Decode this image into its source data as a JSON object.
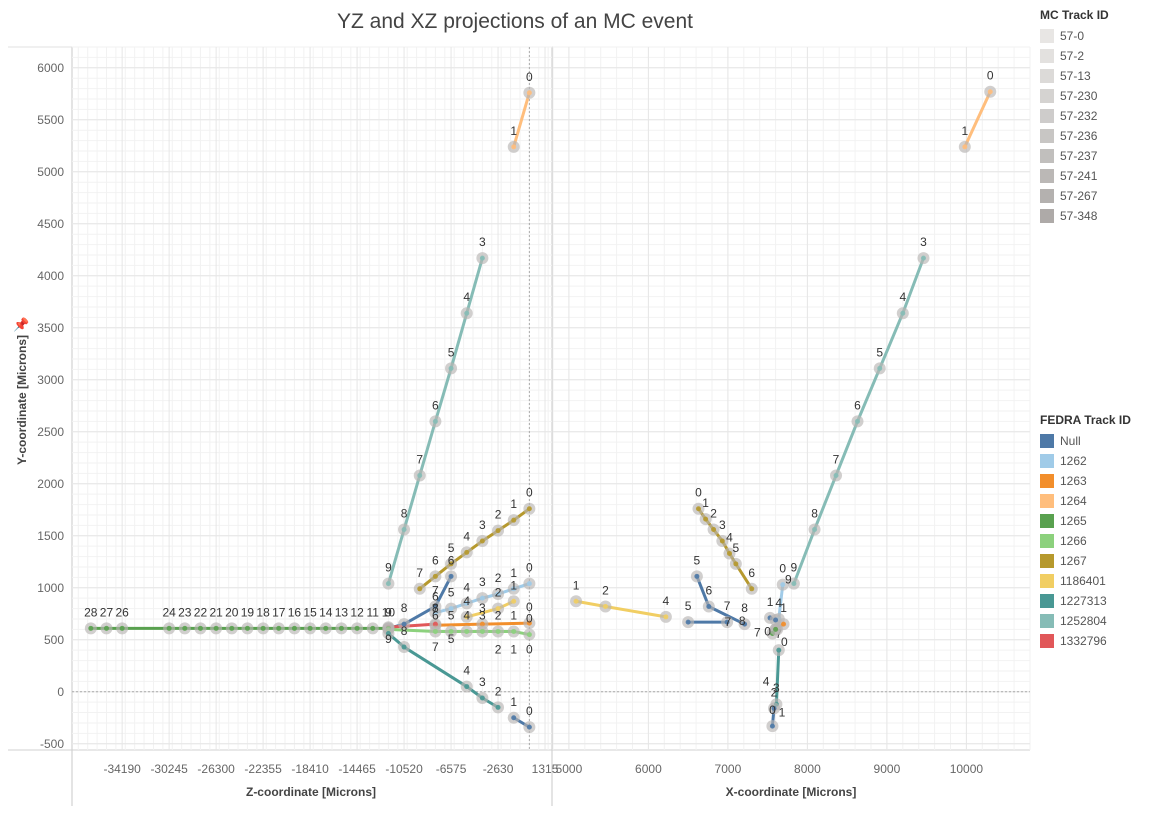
{
  "title": "YZ and XZ projections of an MC event",
  "axes": {
    "y_label": "Y-coordinate [Microns]",
    "left_x_label": "Z-coordinate [Microns]",
    "right_x_label": "X-coordinate [Microns]"
  },
  "legend_mc": {
    "title": "MC Track ID",
    "items": [
      {
        "label": "57-0",
        "color": "#e8e6e4"
      },
      {
        "label": "57-2",
        "color": "#e3e1df"
      },
      {
        "label": "57-13",
        "color": "#dcdad8"
      },
      {
        "label": "57-230",
        "color": "#d5d3d1"
      },
      {
        "label": "57-232",
        "color": "#cecccb"
      },
      {
        "label": "57-236",
        "color": "#c8c6c4"
      },
      {
        "label": "57-237",
        "color": "#c1bfbd"
      },
      {
        "label": "57-241",
        "color": "#bbb8b6"
      },
      {
        "label": "57-267",
        "color": "#b4b1af"
      },
      {
        "label": "57-348",
        "color": "#aeaaa8"
      }
    ]
  },
  "legend_fedra": {
    "title": "FEDRA Track ID",
    "items": [
      {
        "label": "Null",
        "color": "#4e79a7"
      },
      {
        "label": "1262",
        "color": "#a0cbe8"
      },
      {
        "label": "1263",
        "color": "#f28e2b"
      },
      {
        "label": "1264",
        "color": "#ffbe7d"
      },
      {
        "label": "1265",
        "color": "#59a14f"
      },
      {
        "label": "1266",
        "color": "#8cd17d"
      },
      {
        "label": "1267",
        "color": "#b6992d"
      },
      {
        "label": "1186401",
        "color": "#f1ce63"
      },
      {
        "label": "1227313",
        "color": "#499894"
      },
      {
        "label": "1252804",
        "color": "#86bcb6"
      },
      {
        "label": "1332796",
        "color": "#e15759"
      }
    ]
  },
  "chart_data": [
    {
      "type": "line",
      "panel": "YZ projection",
      "xlabel": "Z-coordinate [Microns]",
      "ylabel": "Y-coordinate [Microns]",
      "xlim": [
        -38400,
        1900
      ],
      "ylim": [
        -560,
        6200
      ],
      "x_ticks": [
        "-34190",
        "-30245",
        "-26300",
        "-22355",
        "-18410",
        "-14465",
        "-10520",
        "-6575",
        "-2630",
        "1315"
      ],
      "y_ticks": [
        "6000",
        "5500",
        "5000",
        "4500",
        "4000",
        "3500",
        "3000",
        "2500",
        "2000",
        "1500",
        "1000",
        "500",
        "0",
        "-500"
      ],
      "series": [
        {
          "name": "1264",
          "color": "#ffbe7d",
          "points": [
            [
              0,
              5760,
              "0"
            ],
            [
              -1315,
              5240,
              "1"
            ]
          ]
        },
        {
          "name": "1252804",
          "color": "#86bcb6",
          "points": [
            [
              -3945,
              4170,
              "3"
            ],
            [
              -5260,
              3640,
              "4"
            ],
            [
              -6575,
              3110,
              "5"
            ],
            [
              -7890,
              2600,
              "6"
            ],
            [
              -9205,
              2080,
              "7"
            ],
            [
              -10520,
              1560,
              "8"
            ],
            [
              -11835,
              1040,
              "9"
            ]
          ]
        },
        {
          "name": "1267",
          "color": "#b6992d",
          "points": [
            [
              0,
              1760,
              "0"
            ],
            [
              -1315,
              1650,
              "1"
            ],
            [
              -2630,
              1550,
              "2"
            ],
            [
              -3945,
              1450,
              "3"
            ],
            [
              -5260,
              1340,
              "4"
            ],
            [
              -6575,
              1230,
              "5"
            ],
            [
              -7890,
              1110,
              "6"
            ],
            [
              -9205,
              990,
              "7"
            ]
          ]
        },
        {
          "name": "1262",
          "color": "#a0cbe8",
          "points": [
            [
              0,
              1040,
              "0"
            ],
            [
              -1315,
              990,
              "1"
            ],
            [
              -2630,
              940,
              "2"
            ],
            [
              -3945,
              900,
              "3"
            ],
            [
              -5260,
              850,
              "4"
            ],
            [
              -6575,
              800,
              "5"
            ],
            [
              -7890,
              760,
              "6"
            ]
          ]
        },
        {
          "name": "1186401",
          "color": "#f1ce63",
          "points": [
            [
              -1315,
              870,
              "1"
            ],
            [
              -2630,
              800,
              "2"
            ],
            [
              -5260,
              720,
              "4"
            ]
          ]
        },
        {
          "name": "Null",
          "color": "#4e79a7",
          "points": [
            [
              -6575,
              1110,
              "6"
            ],
            [
              -7890,
              820,
              "7"
            ],
            [
              -10520,
              650,
              "8"
            ],
            [
              -11835,
              610,
              "9"
            ]
          ]
        },
        {
          "name": "1263",
          "color": "#f28e2b",
          "points": [
            [
              0,
              660,
              "0"
            ],
            [
              -3945,
              650,
              "3"
            ],
            [
              -7890,
              640,
              "7"
            ]
          ]
        },
        {
          "name": "1332796",
          "color": "#e15759",
          "points": [
            [
              -7890,
              650,
              "8"
            ],
            [
              -11835,
              620,
              ""
            ]
          ]
        },
        {
          "name": "1265",
          "color": "#59a14f",
          "points": [
            [
              -11835,
              610,
              "10"
            ],
            [
              -13150,
              610,
              "11"
            ],
            [
              -14465,
              610,
              "12"
            ],
            [
              -15780,
              610,
              "13"
            ],
            [
              -17095,
              610,
              "14"
            ],
            [
              -18410,
              610,
              "15"
            ],
            [
              -19725,
              610,
              "16"
            ],
            [
              -21040,
              610,
              "17"
            ],
            [
              -22355,
              610,
              "18"
            ],
            [
              -23670,
              610,
              "19"
            ],
            [
              -24985,
              610,
              "20"
            ],
            [
              -26300,
              610,
              "21"
            ],
            [
              -27615,
              610,
              "22"
            ],
            [
              -28930,
              610,
              "23"
            ],
            [
              -30245,
              610,
              "24"
            ],
            [
              -34190,
              610,
              "26"
            ],
            [
              -35505,
              610,
              "27"
            ],
            [
              -36820,
              610,
              "28"
            ]
          ]
        },
        {
          "name": "1266",
          "color": "#8cd17d",
          "points": [
            [
              0,
              550,
              "0"
            ],
            [
              -1315,
              580,
              "1"
            ],
            [
              -2630,
              580,
              "2"
            ],
            [
              -3945,
              580,
              "3"
            ],
            [
              -5260,
              580,
              "4"
            ],
            [
              -6575,
              580,
              "5"
            ],
            [
              -7890,
              580,
              "6"
            ],
            [
              -11835,
              600,
              ""
            ]
          ]
        },
        {
          "name": "1227313",
          "color": "#499894",
          "points": [
            [
              -2630,
              -150,
              "2"
            ],
            [
              -3945,
              -60,
              "3"
            ],
            [
              -5260,
              50,
              "4"
            ],
            [
              -10520,
              430,
              "8"
            ],
            [
              -11835,
              560,
              ""
            ]
          ]
        },
        {
          "name": "Null",
          "color": "#4e79a7",
          "points": [
            [
              0,
              -340,
              "0"
            ],
            [
              -1315,
              -250,
              "1"
            ]
          ]
        }
      ],
      "free_labels": [
        {
          "x": -11835,
          "y": 470,
          "text": "9"
        },
        {
          "x": -7890,
          "y": 390,
          "text": "7"
        },
        {
          "x": -6575,
          "y": 470,
          "text": "5"
        },
        {
          "x": -2630,
          "y": 370,
          "text": "2"
        },
        {
          "x": -1315,
          "y": 370,
          "text": "1"
        },
        {
          "x": 0,
          "y": 370,
          "text": "0"
        }
      ]
    },
    {
      "type": "line",
      "panel": "XZ projection",
      "xlabel": "X-coordinate [Microns]",
      "ylabel": "Y-coordinate [Microns]",
      "xlim": [
        4800,
        10800
      ],
      "ylim": [
        -560,
        6200
      ],
      "x_ticks": [
        "5000",
        "6000",
        "7000",
        "8000",
        "9000",
        "10000"
      ],
      "series": [
        {
          "name": "1264",
          "color": "#ffbe7d",
          "points": [
            [
              10300,
              5770,
              "0"
            ],
            [
              9980,
              5240,
              "1"
            ]
          ]
        },
        {
          "name": "1252804",
          "color": "#86bcb6",
          "points": [
            [
              9460,
              4170,
              "3"
            ],
            [
              9200,
              3640,
              "4"
            ],
            [
              8910,
              3110,
              "5"
            ],
            [
              8630,
              2600,
              "6"
            ],
            [
              8360,
              2080,
              "7"
            ],
            [
              8090,
              1560,
              "8"
            ],
            [
              7830,
              1040,
              "9"
            ]
          ]
        },
        {
          "name": "1267",
          "color": "#b6992d",
          "points": [
            [
              6630,
              1760,
              "0"
            ],
            [
              6720,
              1660,
              "1"
            ],
            [
              6820,
              1560,
              "2"
            ],
            [
              6930,
              1450,
              "3"
            ],
            [
              7020,
              1330,
              "4"
            ],
            [
              7100,
              1230,
              "5"
            ],
            [
              7300,
              990,
              "6"
            ]
          ]
        },
        {
          "name": "1186401",
          "color": "#f1ce63",
          "points": [
            [
              5090,
              870,
              "1"
            ],
            [
              5460,
              820,
              "2"
            ],
            [
              6220,
              720,
              "4"
            ]
          ]
        },
        {
          "name": "Null",
          "color": "#4e79a7",
          "points": [
            [
              6610,
              1110,
              "5"
            ],
            [
              6760,
              820,
              "6"
            ],
            [
              7210,
              650,
              "8"
            ]
          ]
        },
        {
          "name": "Null",
          "color": "#4e79a7",
          "points": [
            [
              6500,
              670,
              "5"
            ],
            [
              6990,
              670,
              "7"
            ]
          ]
        },
        {
          "name": "1262",
          "color": "#a0cbe8",
          "points": [
            [
              7690,
              1030,
              "0"
            ],
            [
              7640,
              700,
              "4"
            ],
            [
              7620,
              600,
              ""
            ]
          ]
        },
        {
          "name": "1227313",
          "color": "#499894",
          "points": [
            [
              7640,
              400,
              "7"
            ],
            [
              7610,
              -120,
              "3"
            ]
          ]
        },
        {
          "name": "Null",
          "color": "#4e79a7",
          "points": [
            [
              7580,
              -160,
              "2"
            ],
            [
              7560,
              -330,
              "0"
            ]
          ]
        },
        {
          "name": "1263",
          "color": "#f28e2b",
          "points": [
            [
              7700,
              650,
              "1"
            ],
            [
              7600,
              600,
              ""
            ]
          ]
        },
        {
          "name": "1265",
          "color": "#59a14f",
          "points": [
            [
              7560,
              560,
              ""
            ],
            [
              7600,
              600,
              ""
            ]
          ]
        },
        {
          "name": "Null",
          "color": "#4e79a7",
          "points": [
            [
              7530,
              710,
              "1"
            ],
            [
              7600,
              690,
              ""
            ]
          ]
        }
      ],
      "free_labels": [
        {
          "x": 7760,
          "y": 1040,
          "text": "9"
        },
        {
          "x": 7000,
          "y": 630,
          "text": "7"
        },
        {
          "x": 7180,
          "y": 640,
          "text": "8"
        },
        {
          "x": 7500,
          "y": 540,
          "text": "0"
        },
        {
          "x": 7370,
          "y": 530,
          "text": "7"
        },
        {
          "x": 7710,
          "y": 440,
          "text": "0"
        },
        {
          "x": 7480,
          "y": 60,
          "text": "4"
        },
        {
          "x": 7680,
          "y": -240,
          "text": "1"
        }
      ]
    }
  ]
}
